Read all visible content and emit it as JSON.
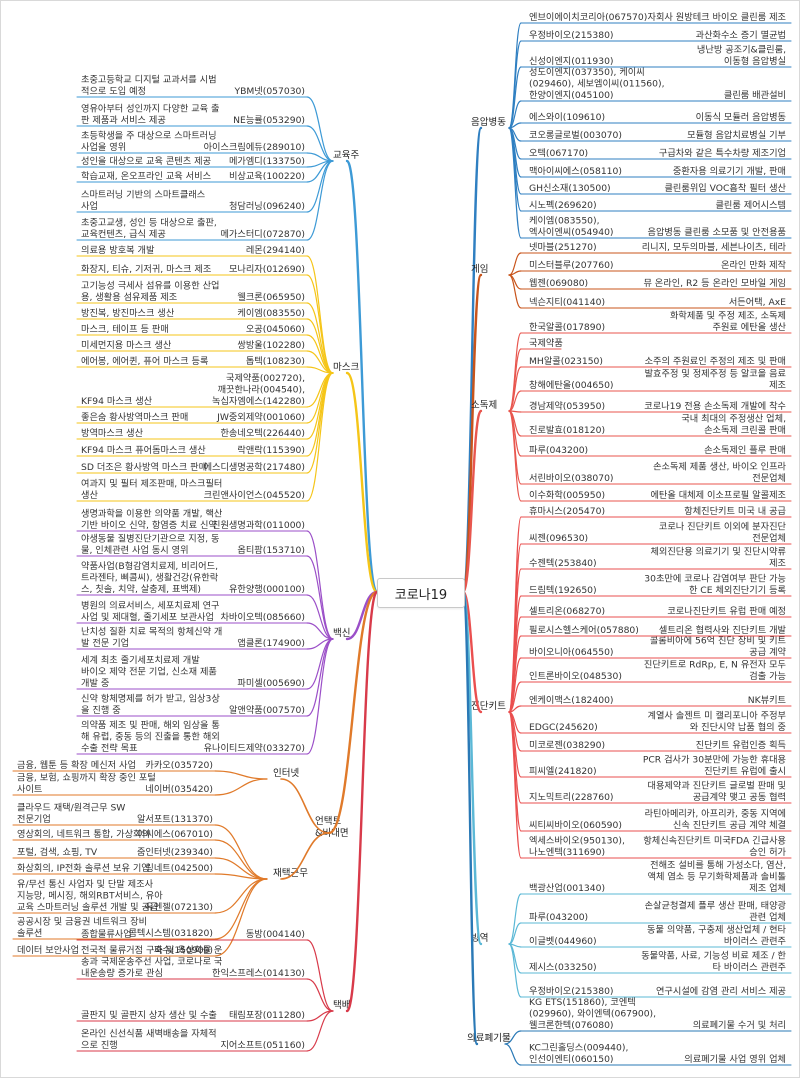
{
  "root": "코로나19",
  "colors": {
    "education": "#3d9ad6",
    "mask": "#f5c518",
    "vaccine": "#9b4fc8",
    "untact": "#e07a2a",
    "delivery": "#d83a4a",
    "air": "#2f7fc1",
    "game": "#c8541b",
    "disinfect": "#e8564e",
    "diag": "#ea4f4f",
    "quarantine": "#5bb8d6",
    "waste": "#2a79b6"
  },
  "branches": [
    {
      "id": "education",
      "label": "교육주",
      "side": "left",
      "color": "education",
      "items": [
        {
          "name": "YBM넷(057030)",
          "desc": [
            "초중고등학교 디지털 교과서를 시범",
            "적으로 도입 예정"
          ]
        },
        {
          "name": "NE능률(053290)",
          "desc": [
            "영유아부터 성인까지 다양한 교육 출",
            "판 제품과 서비스 제공"
          ]
        },
        {
          "name": "아이스크림에듀(289010)",
          "desc": [
            "초등학생을 주 대상으로 스마트러닝",
            "사업을 영위"
          ]
        },
        {
          "name": "메가엠디(133750)",
          "desc": [
            "성인을 대상으로 교육 콘텐츠 제공"
          ]
        },
        {
          "name": "비상교육(100220)",
          "desc": [
            "학습교재, 온오프라인 교육 서비스"
          ]
        },
        {
          "name": "청담러닝(096240)",
          "desc": [
            "스마트러닝 기반의 스마트클래스",
            "사업"
          ]
        },
        {
          "name": "메가스터디(072870)",
          "desc": [
            "초중고교생, 성인 등 대상으로 출판,",
            "교육컨텐츠, 급식 제공"
          ]
        }
      ]
    },
    {
      "id": "mask",
      "label": "마스크",
      "side": "left",
      "color": "mask",
      "items": [
        {
          "name": "레몬(294140)",
          "desc": [
            "의료용 방호복 개발"
          ]
        },
        {
          "name": "모나리자(012690)",
          "desc": [
            "화장지, 티슈, 기저귀, 마스크 제조"
          ]
        },
        {
          "name": "웰크론(065950)",
          "desc": [
            "고기능성 극세사 섬유를 이용한 산업",
            "용, 생활용 섬유제품 제조"
          ]
        },
        {
          "name": "케이엠(083550)",
          "desc": [
            "방진복, 방진마스크 생산"
          ]
        },
        {
          "name": "오공(045060)",
          "desc": [
            "마스크, 테이프 등 판매"
          ]
        },
        {
          "name": "쌍방울(102280)",
          "desc": [
            "미세먼지용 마스크 생산"
          ]
        },
        {
          "name": "톱텍(108230)",
          "desc": [
            "에어봉, 에어퀸, 퓨어 마스크 등록"
          ]
        },
        {
          "name": "국제약품(002720),\n깨끗한나라(004540),\n녹십자엠에스(142280)",
          "desc": [
            "KF94 마스크 생산"
          ]
        },
        {
          "name": "JW중외제약(001060)",
          "desc": [
            "좋은숨 황사방역마스크 판매"
          ]
        },
        {
          "name": "한송네오텍(226440)",
          "desc": [
            "방역마스크 생산"
          ]
        },
        {
          "name": "락앤락(115390)",
          "desc": [
            "KF94 마스크 퓨어돔마스크 생산"
          ]
        },
        {
          "name": "에스디생명공학(217480)",
          "desc": [
            "SD 더조은 황사방역 마스크 판매"
          ]
        },
        {
          "name": "크린앤사이언스(045520)",
          "desc": [
            "여과지 및 필터 제조판매, 마스크필터",
            "생산"
          ]
        }
      ]
    },
    {
      "id": "vaccine",
      "label": "백신",
      "side": "left",
      "color": "vaccine",
      "items": [
        {
          "name": "진원생명과학(011000)",
          "desc": [
            "생명과학을 이용한 의약품 개발, 핵산",
            "기반 바이오 신약, 항염증 치료 신약"
          ]
        },
        {
          "name": "옵티팜(153710)",
          "desc": [
            "야생동물 질병진단기관으로 지정, 동",
            "물, 인체관련 사업 동시 영위"
          ]
        },
        {
          "name": "유한양행(000100)",
          "desc": [
            "약품사업(B형감염치료제, 비리어드,",
            "트라젠타, 삐콤씨), 생활건강(유한락",
            "스, 칫솔, 치약, 살충제, 표백제)"
          ]
        },
        {
          "name": "차바이오텍(085660)",
          "desc": [
            "병원의 의료서비스, 세포치료제 연구",
            "사업 및 제대혈, 줄기세포 보관사업"
          ]
        },
        {
          "name": "앱클론(174900)",
          "desc": [
            "난치성 질환 치료 목적의 항체신약 개",
            "발 전문 기업"
          ]
        },
        {
          "name": "파미셀(005690)",
          "desc": [
            "세계 최초 줄기세포치료제 개발",
            "바이오 제약 전문 기업, 신소재 제품",
            "개발 중"
          ]
        },
        {
          "name": "알앤약품(007570)",
          "desc": [
            "신약 항체명제를 허가 받고, 임상3상",
            "을 진행 중"
          ]
        },
        {
          "name": "유나이티드제약(033270)",
          "desc": [
            "의약품 제조 및 판매, 해외 임상을 통",
            "해 유럽, 중동 등의 진출을 통한 해외",
            "수출 전략 목표"
          ]
        }
      ]
    },
    {
      "id": "untact",
      "label": "언택트\n&비대면",
      "side": "left",
      "color": "untact",
      "groups": [
        {
          "label": "인터넷",
          "items": [
            {
              "name": "카카오(035720)",
              "desc": [
                "금융, 웹툰 등 확장 메신저 사업"
              ]
            },
            {
              "name": "네이버(035420)",
              "desc": [
                "금융, 보험, 쇼핑까지 확장 중인 포털",
                "사이트"
              ]
            }
          ]
        },
        {
          "label": "재택근무",
          "items": [
            {
              "name": "알서포트(131370)",
              "desc": [
                "클라우드 재택/원격근무 SW",
                "전문기업"
              ]
            },
            {
              "name": "이씨에스(067010)",
              "desc": [
                "영상회의, 네트워크 통합, 가상회의"
              ]
            },
            {
              "name": "줌인터넷(239340)",
              "desc": [
                "포털, 검색, 쇼핑, TV"
              ]
            },
            {
              "name": "링네트(042500)",
              "desc": [
                "화상회의, IP전화 솔루션 보유 기업"
              ]
            },
            {
              "name": "유엔젤(072130)",
              "desc": [
                "유/무선 통신 사업자 및 단말 제조사",
                "지능망, 메시징, 해외RBT서비스, 유아",
                "교육 스마트러닝 솔루션 개발 및 공급"
              ]
            },
            {
              "name": "콤텍시스템(031820)",
              "desc": [
                "공공시장 및 금융권 네트워크 장비",
                "솔루션"
              ]
            },
            {
              "name": "파수(150900)",
              "desc": [
                "데이터 보안사업"
              ]
            }
          ]
        }
      ]
    },
    {
      "id": "delivery",
      "label": "택배",
      "side": "left",
      "color": "delivery",
      "items": [
        {
          "name": "동방(004140)",
          "desc": [
            "종합물류사업"
          ]
        },
        {
          "name": "한익스프레스(014130)",
          "desc": [
            "전국적 물류거점 구축 및 육상화물 운",
            "송과 국제운송주선 사업, 코로나로 국",
            "내운송량 증가로 관심"
          ]
        },
        {
          "name": "태림포장(011280)",
          "desc": [
            "골판지 및 골판지 상자 생산 및 수출"
          ]
        },
        {
          "name": "지어소프트(051160)",
          "desc": [
            "온라인 신선식품 새벽배송을 자체적",
            "으로 진행"
          ]
        }
      ]
    },
    {
      "id": "air",
      "label": "음압병동",
      "side": "right",
      "color": "air",
      "items": [
        {
          "name": [
            "엔브이에이치코리아(067570)"
          ],
          "desc": [
            "자회사 원방테크 바이오 클린룸 제조"
          ]
        },
        {
          "name": [
            "우정바이오(215380)"
          ],
          "desc": [
            "과산화수소 증기 멸균법"
          ]
        },
        {
          "name": [
            "신성이엔지(011930)"
          ],
          "desc": [
            "냉난방 공조기&클린룸,",
            "이동형 음압병실"
          ]
        },
        {
          "name": [
            "성도이엔지(037350), 케이씨",
            "(029460), 세보엠이씨(011560),",
            "한양이엔지(045100)"
          ],
          "desc": [
            "클린룸 배관설비"
          ]
        },
        {
          "name": [
            "에스와이(109610)"
          ],
          "desc": [
            "이동식 모듈러 음압병동"
          ]
        },
        {
          "name": [
            "코오롱글로벌(003070)"
          ],
          "desc": [
            "모듈형 음압치료병실 기부"
          ]
        },
        {
          "name": [
            "오텍(067170)"
          ],
          "desc": [
            "구급차와 같은 특수차량 제조기업"
          ]
        },
        {
          "name": [
            "맥아이씨에스(058110)"
          ],
          "desc": [
            "중환자용 의료기기 개발, 판매"
          ]
        },
        {
          "name": [
            "GH신소재(130500)"
          ],
          "desc": [
            "클린룸위입 VOC흡착 필터 생산"
          ]
        },
        {
          "name": [
            "시노펙(269620)"
          ],
          "desc": [
            "클린룸 제어시스템"
          ]
        },
        {
          "name": [
            "케이엠(083550),",
            "엑사이엔씨(054940)"
          ],
          "desc": [
            "음압병동 클린룸 소모품 및 안전용품"
          ]
        }
      ]
    },
    {
      "id": "game",
      "label": "게임",
      "side": "right",
      "color": "game",
      "items": [
        {
          "name": [
            "넷마블(251270)"
          ],
          "desc": [
            "리니지, 모두의마블, 세븐나이츠, 테라"
          ]
        },
        {
          "name": [
            "미스터블루(207760)"
          ],
          "desc": [
            "온라인 만화 제작"
          ]
        },
        {
          "name": [
            "웹젠(069080)"
          ],
          "desc": [
            "뮤 온라인, R2 등 온라인 모바일 게임"
          ]
        },
        {
          "name": [
            "넥슨지티(041140)"
          ],
          "desc": [
            "서든어택, AxE"
          ]
        }
      ]
    },
    {
      "id": "disinfect",
      "label": "소독제",
      "side": "right",
      "color": "disinfect",
      "items": [
        {
          "name": [
            "한국알콜(017890)"
          ],
          "desc": [
            "화학제품 및 주정 제조, 소독제",
            "주원료 에탄올 생산"
          ]
        },
        {
          "name": [
            "국제약품"
          ],
          "desc": []
        },
        {
          "name": [
            "MH알콜(023150)"
          ],
          "desc": [
            "소주의 주원료인 주정의 제조 및 판매"
          ]
        },
        {
          "name": [
            "창해에탄올(004650)"
          ],
          "desc": [
            "발효주정 및 정제주정 등 알코올 음료",
            "제조"
          ]
        },
        {
          "name": [
            "경남제약(053950)"
          ],
          "desc": [
            "코로나19 전용 손소독제 개발에 착수"
          ]
        },
        {
          "name": [
            "진로발효(018120)"
          ],
          "desc": [
            "국내 최대의 주정생산 업체,",
            "손소독제 크린콜 판매"
          ]
        },
        {
          "name": [
            "파루(043200)"
          ],
          "desc": [
            "손소독제인 플루 판매"
          ]
        },
        {
          "name": [
            "서린바이오(038070)"
          ],
          "desc": [
            "손소독제 제품 생산, 바이오 인프라",
            "전문업체"
          ]
        },
        {
          "name": [
            "이수화학(005950)"
          ],
          "desc": [
            "에탄올 대체제 이소프로필 알콜제조"
          ]
        }
      ]
    },
    {
      "id": "diag",
      "label": "진단키트",
      "side": "right",
      "color": "diag",
      "items": [
        {
          "name": [
            "휴마시스(205470)"
          ],
          "desc": [
            "항체진단키트 미국 내 공급"
          ]
        },
        {
          "name": [
            "씨젠(096530)"
          ],
          "desc": [
            "코로나 진단키트 이외에 분자진단",
            "전문업체"
          ]
        },
        {
          "name": [
            "수젠텍(253840)"
          ],
          "desc": [
            "체외진단용 의료기기 및 진단시약류",
            "제조"
          ]
        },
        {
          "name": [
            "드림텍(192650)"
          ],
          "desc": [
            "30초만에 코로나 감염여부 판단 가능",
            "한 CE 체외진단기기 등록"
          ]
        },
        {
          "name": [
            "셀트리온(068270)"
          ],
          "desc": [
            "코로나진단키트 유럽 판매 예정"
          ]
        },
        {
          "name": [
            "필로시스헬스케어(057880)"
          ],
          "desc": [
            "셀트리온 협력사와 진단키트 개발"
          ]
        },
        {
          "name": [
            "바이오니아(064550)"
          ],
          "desc": [
            "콜롬비아에 56억 진단 장비 및 키트",
            "공급 계약"
          ]
        },
        {
          "name": [
            "인트론바이오(048530)"
          ],
          "desc": [
            "진단키트로 RdRp, E, N 유전자 모두",
            "검출 가능"
          ]
        },
        {
          "name": [
            "엔케이맥스(182400)"
          ],
          "desc": [
            "NK뷰키트"
          ]
        },
        {
          "name": [
            "EDGC(245620)"
          ],
          "desc": [
            "계열사 솔젠트 미 캘리포니아 주정부",
            "와 진단시약 납품 협의 중"
          ]
        },
        {
          "name": [
            "미코로젠(038290)"
          ],
          "desc": [
            "진단키트 유럽인증 획득"
          ]
        },
        {
          "name": [
            "피씨엘(241820)"
          ],
          "desc": [
            "PCR 검사가 30분만에 가능한 휴대용",
            "진단키트 유럽에 출시"
          ]
        },
        {
          "name": [
            "지노믹트리(228760)"
          ],
          "desc": [
            "대용제약과 진단키트 글로벌 판매 및",
            "공급계약 맺고 공동 협력"
          ]
        },
        {
          "name": [
            "씨티씨바이오(060590)"
          ],
          "desc": [
            "라틴아메리카, 아프리카, 중동 지역에",
            "신속 진단키트 공급 계약 체결"
          ]
        },
        {
          "name": [
            "엑세스바이오(950130),",
            "나노엔텍(311690)"
          ],
          "desc": [
            "항체신속진단키트 미국FDA 긴급사용",
            "승인 허가"
          ]
        }
      ]
    },
    {
      "id": "quarantine",
      "label": "방역",
      "side": "right",
      "color": "quarantine",
      "items": [
        {
          "name": [
            "백광산업(001340)"
          ],
          "desc": [
            "전해조 설비를 통해 가성소다, 염산,",
            "액체 염소 등 무기화학제품과 솔비톨",
            "제조 업체"
          ]
        },
        {
          "name": [
            "파루(043200)"
          ],
          "desc": [
            "손살균청결제 플루 생산 판매, 태양광",
            "관련 업체"
          ]
        },
        {
          "name": [
            "이글벳(044960)"
          ],
          "desc": [
            "동물 의약품, 구충제 생산업체 / 현타",
            "바이러스 관련주"
          ]
        },
        {
          "name": [
            "제시스(033250)"
          ],
          "desc": [
            "동물약품, 사료, 기능성 비료 제조 / 한",
            "타 바이러스 관련주"
          ]
        },
        {
          "name": [
            "우정바이오(215380)"
          ],
          "desc": [
            "연구시설에 감염 관리 서비스 제공"
          ]
        }
      ]
    },
    {
      "id": "waste",
      "label": "의료폐기물",
      "side": "right",
      "color": "waste",
      "items": [
        {
          "name": [
            "KG ETS(151860), 코엔텍",
            "(029960), 와이엔텍(067900),",
            "웰크론한텍(076080)"
          ],
          "desc": [
            "의료폐기물 수거 및 처리"
          ]
        },
        {
          "name": [
            "KC그린홀딩스(009440),",
            "인선이엔티(060150)"
          ],
          "desc": [
            "의료폐기물 사업 영위 업체"
          ]
        }
      ]
    }
  ]
}
